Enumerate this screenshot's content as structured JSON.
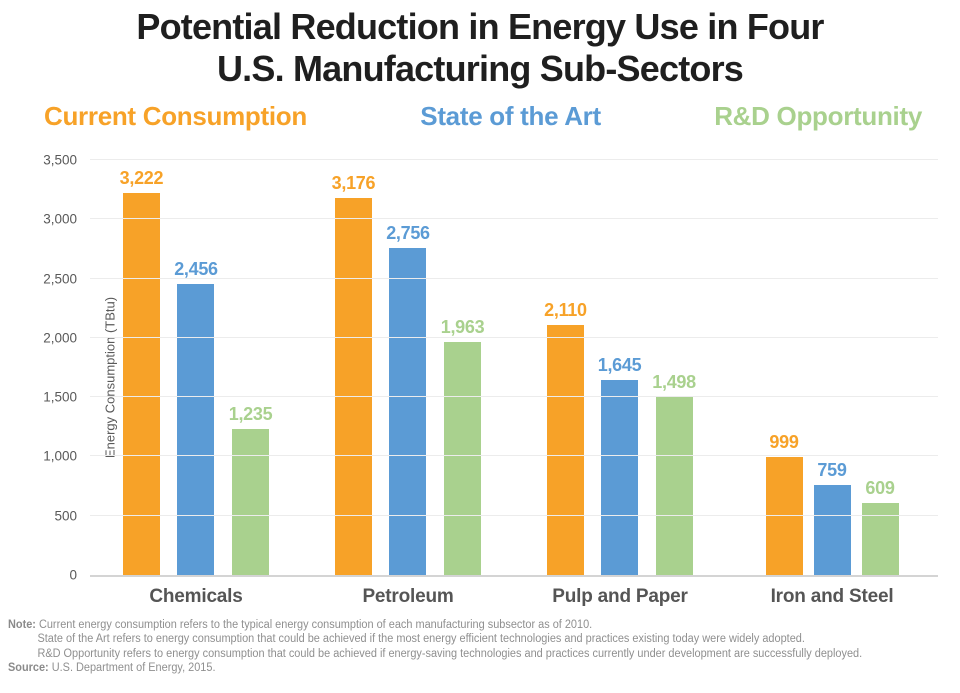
{
  "title": {
    "line1": "Potential Reduction in Energy Use in Four",
    "line2": "U.S. Manufacturing Sub-Sectors"
  },
  "chart_data": {
    "type": "bar",
    "categories": [
      "Chemicals",
      "Petroleum",
      "Pulp and Paper",
      "Iron and Steel"
    ],
    "series": [
      {
        "name": "Current Consumption",
        "color": "#F7A228",
        "values": [
          3222,
          3176,
          2110,
          999
        ]
      },
      {
        "name": "State of the Art",
        "color": "#5B9BD5",
        "values": [
          2456,
          2756,
          1645,
          759
        ]
      },
      {
        "name": "R&D Opportunity",
        "color": "#A9D18E",
        "values": [
          1235,
          1963,
          1498,
          609
        ]
      }
    ],
    "title": "Potential Reduction in Energy Use in Four U.S. Manufacturing Sub-Sectors",
    "xlabel": "",
    "ylabel": "Energy Consumption (TBtu)",
    "ylim": [
      0,
      3500
    ],
    "ytick_interval": 500,
    "grid": true,
    "legend_position": "top",
    "value_labels": true
  },
  "notes": {
    "note_label": "Note:",
    "line1": "Current energy consumption refers to the typical energy consumption of each manufacturing subsector as of 2010.",
    "line2": "State of the Art refers to energy consumption that could be achieved if the most energy efficient technologies and practices existing today were widely adopted.",
    "line3": "R&D Opportunity refers to energy consumption that could be achieved if energy-saving technologies and practices currently under development are successfully deployed.",
    "source_label": "Source:",
    "source_text": "U.S. Department of Energy, 2015."
  }
}
